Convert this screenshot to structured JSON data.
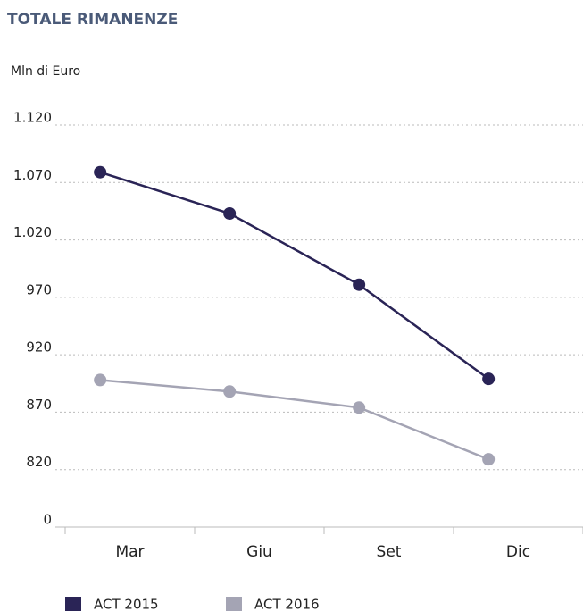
{
  "chart_data": {
    "type": "line",
    "title": "TOTALE RIMANENZE",
    "y_axis_label": "Mln di Euro",
    "categories": [
      "Mar",
      "Giu",
      "Set",
      "Dic"
    ],
    "series": [
      {
        "name": "ACT 2015",
        "color": "#2a2456",
        "values": [
          1079,
          1043,
          981,
          899
        ]
      },
      {
        "name": "ACT 2016",
        "color": "#a4a4b4",
        "values": [
          898,
          888,
          874,
          829
        ]
      }
    ],
    "ylim": [
      0,
      1120
    ],
    "yticks": [
      0,
      820,
      870,
      920,
      970,
      {
        "value": 1020,
        "label": "1.020"
      },
      {
        "value": 1070,
        "label": "1.070"
      },
      {
        "value": 1120,
        "label": "1.120"
      }
    ],
    "grid": true,
    "legend": "bottom"
  }
}
